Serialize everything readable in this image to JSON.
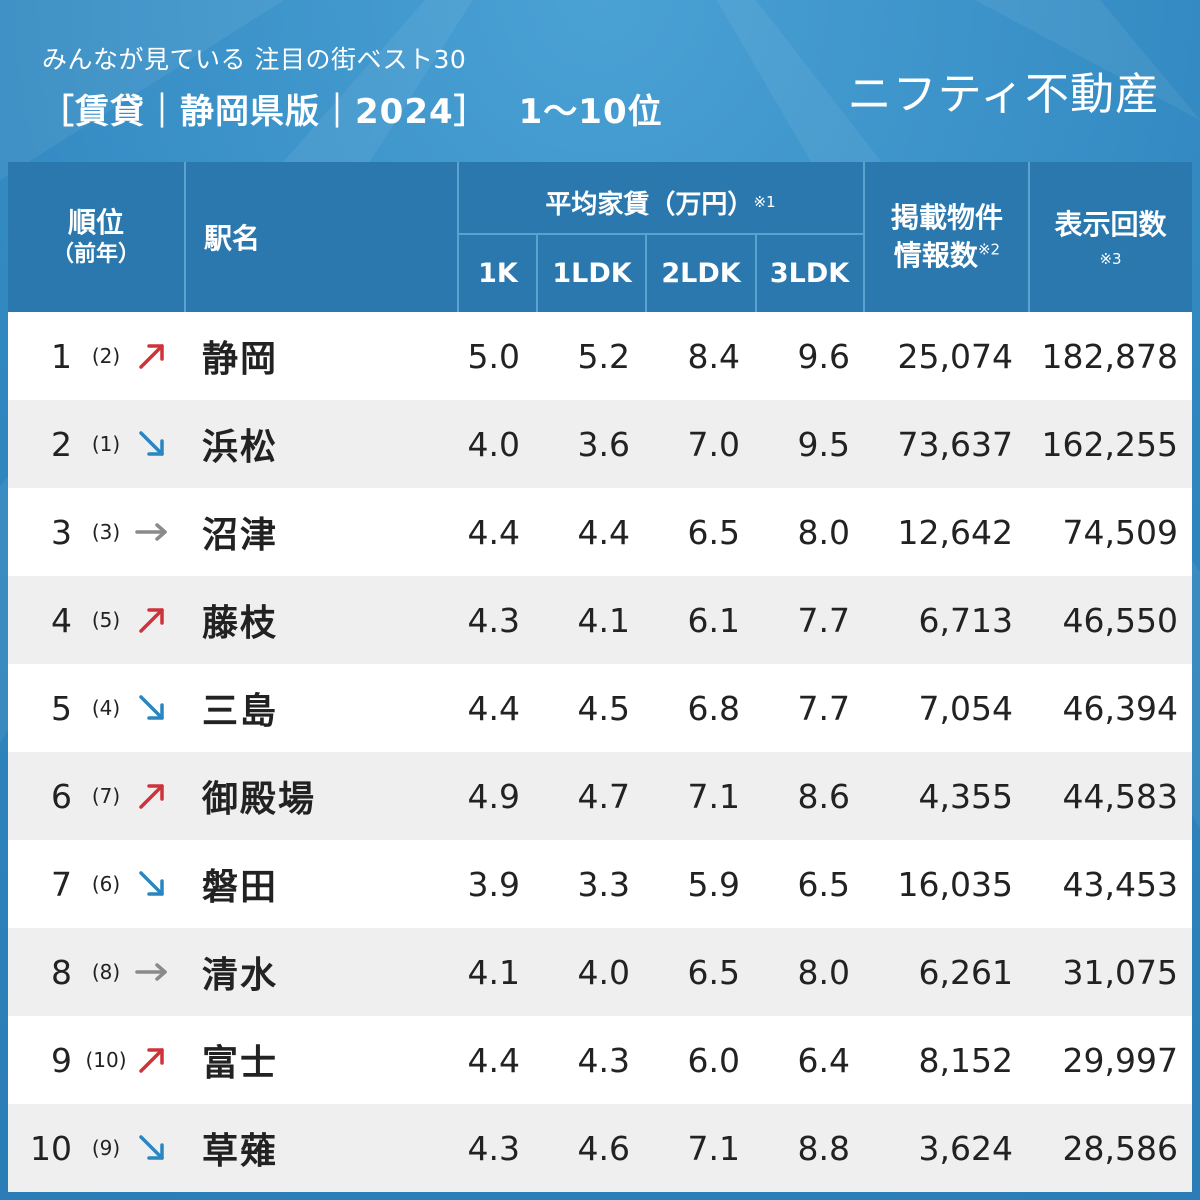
{
  "header": {
    "subtitle": "みんなが見ている 注目の街ベスト30",
    "title": "［賃貸｜静岡県版｜2024］",
    "range": "1〜10位",
    "brand": "ニフティ不動産"
  },
  "table_header": {
    "rank": "順位",
    "rank_sub": "（前年）",
    "station": "駅名",
    "avg_rent": "平均家賃（万円）",
    "avg_rent_note": "※1",
    "cols": [
      "1K",
      "1LDK",
      "2LDK",
      "3LDK"
    ],
    "listings_line1": "掲載物件",
    "listings_line2": "情報数",
    "listings_note": "※2",
    "views": "表示回数",
    "views_note": "※3"
  },
  "colors": {
    "up": "#d0323a",
    "down": "#2a86c2",
    "same": "#8a8a8a"
  },
  "rows": [
    {
      "rank": "1",
      "prev": "(2)",
      "trend": "up",
      "name": "静岡",
      "k1": "5.0",
      "ldk1": "5.2",
      "ldk2": "8.4",
      "ldk3": "9.6",
      "listings": "25,074",
      "views": "182,878"
    },
    {
      "rank": "2",
      "prev": "(1)",
      "trend": "down",
      "name": "浜松",
      "k1": "4.0",
      "ldk1": "3.6",
      "ldk2": "7.0",
      "ldk3": "9.5",
      "listings": "73,637",
      "views": "162,255"
    },
    {
      "rank": "3",
      "prev": "(3)",
      "trend": "same",
      "name": "沼津",
      "k1": "4.4",
      "ldk1": "4.4",
      "ldk2": "6.5",
      "ldk3": "8.0",
      "listings": "12,642",
      "views": "74,509"
    },
    {
      "rank": "4",
      "prev": "(5)",
      "trend": "up",
      "name": "藤枝",
      "k1": "4.3",
      "ldk1": "4.1",
      "ldk2": "6.1",
      "ldk3": "7.7",
      "listings": "6,713",
      "views": "46,550"
    },
    {
      "rank": "5",
      "prev": "(4)",
      "trend": "down",
      "name": "三島",
      "k1": "4.4",
      "ldk1": "4.5",
      "ldk2": "6.8",
      "ldk3": "7.7",
      "listings": "7,054",
      "views": "46,394"
    },
    {
      "rank": "6",
      "prev": "(7)",
      "trend": "up",
      "name": "御殿場",
      "k1": "4.9",
      "ldk1": "4.7",
      "ldk2": "7.1",
      "ldk3": "8.6",
      "listings": "4,355",
      "views": "44,583"
    },
    {
      "rank": "7",
      "prev": "(6)",
      "trend": "down",
      "name": "磐田",
      "k1": "3.9",
      "ldk1": "3.3",
      "ldk2": "5.9",
      "ldk3": "6.5",
      "listings": "16,035",
      "views": "43,453"
    },
    {
      "rank": "8",
      "prev": "(8)",
      "trend": "same",
      "name": "清水",
      "k1": "4.1",
      "ldk1": "4.0",
      "ldk2": "6.5",
      "ldk3": "8.0",
      "listings": "6,261",
      "views": "31,075"
    },
    {
      "rank": "9",
      "prev": "(10)",
      "trend": "up",
      "name": "富士",
      "k1": "4.4",
      "ldk1": "4.3",
      "ldk2": "6.0",
      "ldk3": "6.4",
      "listings": "8,152",
      "views": "29,997"
    },
    {
      "rank": "10",
      "prev": "(9)",
      "trend": "down",
      "name": "草薙",
      "k1": "4.3",
      "ldk1": "4.6",
      "ldk2": "7.1",
      "ldk3": "8.8",
      "listings": "3,624",
      "views": "28,586"
    }
  ]
}
